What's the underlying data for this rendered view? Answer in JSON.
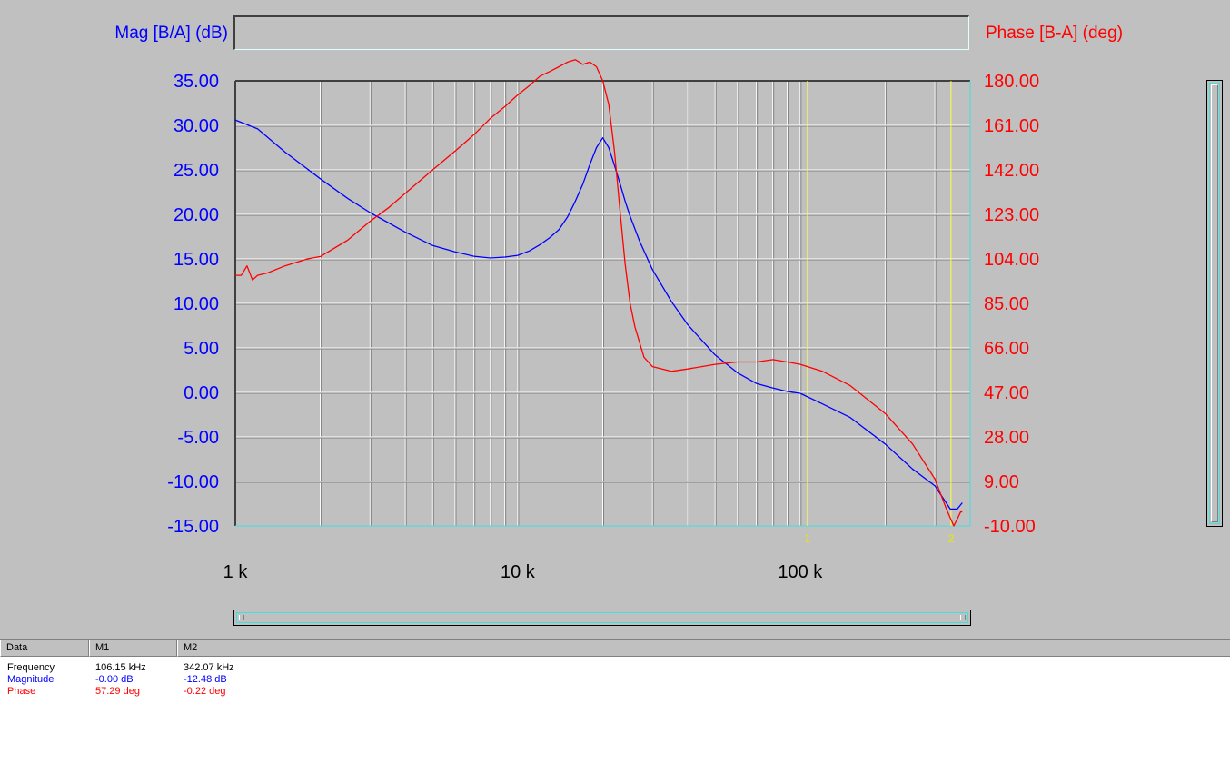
{
  "chart_data": {
    "type": "line",
    "title_left": "Mag [B/A] (dB)",
    "title_right": "Phase [B-A] (deg)",
    "x_scale": "log",
    "x_range": [
      1000,
      400000
    ],
    "x_ticks": [
      {
        "value": 1000,
        "label": "1 k"
      },
      {
        "value": 10000,
        "label": "10 k"
      },
      {
        "value": 100000,
        "label": "100 k"
      }
    ],
    "y_left": {
      "range": [
        -15,
        35
      ],
      "ticks": [
        "35.00",
        "30.00",
        "25.00",
        "20.00",
        "15.00",
        "10.00",
        "5.00",
        "0.00",
        "-5.00",
        "-10.00",
        "-15.00"
      ],
      "color": "#0000ff"
    },
    "y_right": {
      "range": [
        -10,
        180
      ],
      "ticks": [
        "180.00",
        "161.00",
        "142.00",
        "123.00",
        "104.00",
        "85.00",
        "66.00",
        "47.00",
        "28.00",
        "9.00",
        "-10.00"
      ],
      "color": "#ff0000"
    },
    "grid": true,
    "series": [
      {
        "name": "Magnitude",
        "axis": "left",
        "color": "#0000ff",
        "x": [
          1000,
          1200,
          1500,
          2000,
          2500,
          3000,
          4000,
          5000,
          6000,
          7000,
          8000,
          9000,
          10000,
          11000,
          12000,
          13000,
          14000,
          15000,
          16000,
          17000,
          18000,
          19000,
          20000,
          21000,
          22000,
          23000,
          24000,
          25000,
          27000,
          30000,
          35000,
          40000,
          50000,
          60000,
          70000,
          80000,
          90000,
          100000,
          120000,
          150000,
          200000,
          250000,
          300000,
          340000,
          360000,
          375000
        ],
        "y": [
          30.6,
          29.6,
          27.0,
          24.0,
          21.8,
          20.2,
          18.0,
          16.5,
          15.8,
          15.3,
          15.1,
          15.2,
          15.4,
          15.9,
          16.6,
          17.4,
          18.3,
          19.7,
          21.5,
          23.4,
          25.6,
          27.5,
          28.6,
          27.5,
          25.5,
          23.5,
          21.5,
          19.8,
          17.0,
          13.8,
          10.2,
          7.6,
          4.2,
          2.2,
          1.0,
          0.5,
          0.1,
          -0.1,
          -1.3,
          -2.8,
          -5.8,
          -8.6,
          -10.5,
          -13.1,
          -13.1,
          -12.4
        ]
      },
      {
        "name": "Phase",
        "axis": "right",
        "color": "#ff0000",
        "x": [
          1000,
          1050,
          1100,
          1150,
          1200,
          1300,
          1500,
          1800,
          2000,
          2500,
          3000,
          3500,
          4000,
          5000,
          6000,
          7000,
          8000,
          9000,
          10000,
          11000,
          12000,
          13000,
          14000,
          15000,
          16000,
          17000,
          18000,
          19000,
          20000,
          21000,
          22000,
          23000,
          24000,
          25000,
          26000,
          28000,
          30000,
          35000,
          40000,
          50000,
          60000,
          70000,
          80000,
          90000,
          100000,
          120000,
          150000,
          200000,
          250000,
          300000,
          330000,
          350000,
          360000,
          370000,
          375000
        ],
        "y": [
          97,
          97,
          101,
          95,
          97,
          98,
          101,
          104,
          105,
          112,
          120,
          126,
          132,
          142,
          150,
          157,
          164,
          169,
          174,
          178,
          182,
          184,
          186,
          188,
          189,
          187,
          188,
          186,
          180,
          170,
          150,
          125,
          102,
          85,
          75,
          62,
          58,
          56,
          57,
          59,
          60,
          60,
          61,
          60,
          59,
          56,
          50,
          38,
          25,
          10,
          -3,
          -10,
          -7,
          -4,
          -4
        ]
      }
    ],
    "markers": [
      {
        "label": "1",
        "x": 106150
      },
      {
        "label": "2",
        "x": 342070
      }
    ]
  },
  "table": {
    "headers": [
      "Data",
      "M1",
      "M2"
    ],
    "rows": [
      {
        "label": "Frequency",
        "m1": "106.15 kHz",
        "m2": "342.07 kHz",
        "color": "#000000"
      },
      {
        "label": "Magnitude",
        "m1": "-0.00 dB",
        "m2": "-12.48 dB",
        "color": "#0000ff"
      },
      {
        "label": "Phase",
        "m1": "57.29 deg",
        "m2": "-0.22 deg",
        "color": "#ff0000"
      }
    ]
  }
}
